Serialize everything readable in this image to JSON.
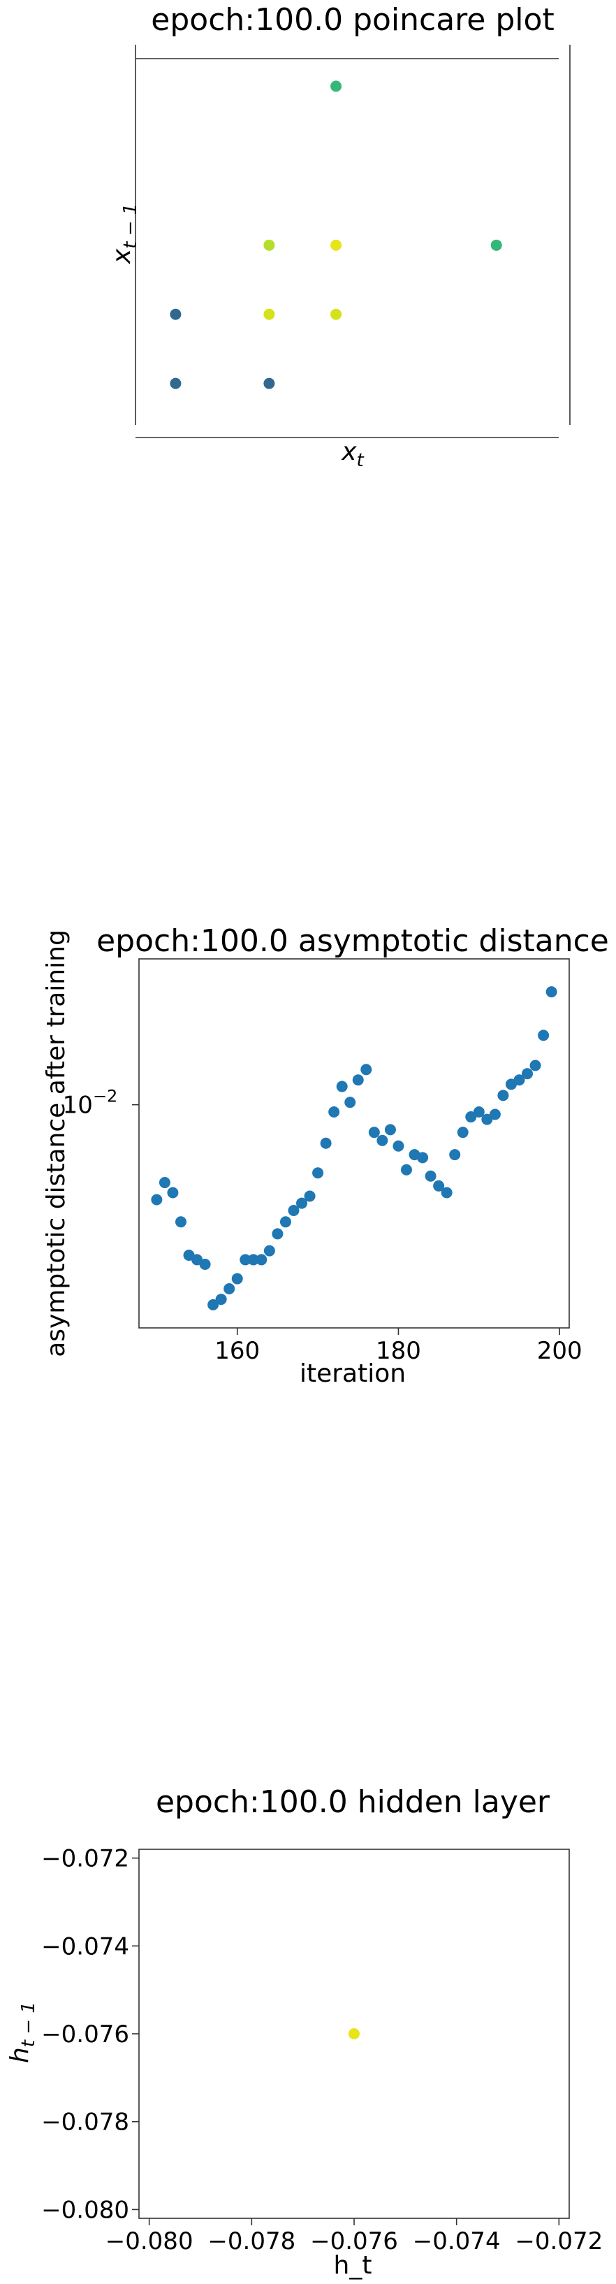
{
  "chart_data": [
    {
      "type": "scatter",
      "title": "epoch:100.0 poincare plot",
      "xlabel": "x_t",
      "ylabel": "x_{t-1}",
      "xlabel_parts": {
        "base": "x",
        "sub": "t"
      },
      "ylabel_parts": {
        "base": "x",
        "sub": "t − 1"
      },
      "x_ticks_visible": false,
      "y_ticks_visible": false,
      "xlim": [
        0,
        6.5
      ],
      "ylim": [
        0,
        5.5
      ],
      "points": [
        {
          "x": 0.6,
          "y": 0.6,
          "color": "#31688e"
        },
        {
          "x": 2.0,
          "y": 0.6,
          "color": "#31688e"
        },
        {
          "x": 0.6,
          "y": 1.6,
          "color": "#31688e"
        },
        {
          "x": 2.0,
          "y": 1.6,
          "color": "#d5e21a"
        },
        {
          "x": 3.0,
          "y": 1.6,
          "color": "#d5e21a"
        },
        {
          "x": 2.0,
          "y": 2.6,
          "color": "#b5de2b"
        },
        {
          "x": 3.0,
          "y": 2.6,
          "color": "#e7e419"
        },
        {
          "x": 5.4,
          "y": 2.6,
          "color": "#35b779"
        },
        {
          "x": 3.0,
          "y": 4.9,
          "color": "#35b779"
        }
      ],
      "reference_line": {
        "y": 5.3,
        "color": "#555555"
      }
    },
    {
      "type": "scatter",
      "title": "epoch:100.0 asymptotic distance",
      "xlabel": "iteration",
      "ylabel": "asymptotic distance after training",
      "yscale": "log",
      "xlim": [
        147.8,
        201.2
      ],
      "ylim": [
        0.0039,
        0.0185
      ],
      "x_ticks": [
        160,
        180,
        200
      ],
      "y_ticks": [
        {
          "value": 0.01,
          "label_base": "10",
          "label_exp": "−2"
        }
      ],
      "color": "#1f77b4",
      "x": [
        150,
        151,
        152,
        153,
        154,
        155,
        156,
        157,
        158,
        159,
        160,
        161,
        162,
        163,
        164,
        165,
        166,
        167,
        168,
        169,
        170,
        171,
        172,
        173,
        174,
        175,
        176,
        177,
        178,
        179,
        180,
        181,
        182,
        183,
        184,
        185,
        186,
        187,
        188,
        189,
        190,
        191,
        192,
        193,
        194,
        195,
        196,
        197,
        198,
        199
      ],
      "y": [
        0.0067,
        0.0072,
        0.0069,
        0.0061,
        0.0053,
        0.0052,
        0.0051,
        0.0043,
        0.0044,
        0.0046,
        0.0048,
        0.0052,
        0.0052,
        0.0052,
        0.0054,
        0.0058,
        0.0061,
        0.0064,
        0.0066,
        0.0068,
        0.0075,
        0.0085,
        0.0097,
        0.0108,
        0.0101,
        0.0111,
        0.0116,
        0.0089,
        0.0086,
        0.009,
        0.0084,
        0.0076,
        0.0081,
        0.008,
        0.0074,
        0.0071,
        0.0069,
        0.0081,
        0.0089,
        0.0095,
        0.0097,
        0.0094,
        0.0096,
        0.0104,
        0.0109,
        0.0111,
        0.0114,
        0.0118,
        0.0134,
        0.0161
      ]
    },
    {
      "type": "scatter",
      "title": "epoch:100.0 hidden layer",
      "xlabel": "h_t",
      "ylabel": "h_{t-1}",
      "ylabel_parts": {
        "base": "h",
        "sub": "t − 1"
      },
      "xlim": [
        -0.0802,
        -0.0718
      ],
      "ylim": [
        -0.0802,
        -0.0718
      ],
      "x_ticks": [
        -0.08,
        -0.078,
        -0.076,
        -0.074,
        -0.072
      ],
      "y_ticks": [
        -0.072,
        -0.074,
        -0.076,
        -0.078,
        -0.08
      ],
      "x_tick_labels": [
        "−0.080",
        "−0.078",
        "−0.076",
        "−0.074",
        "−0.072"
      ],
      "y_tick_labels": [
        "−0.072",
        "−0.074",
        "−0.076",
        "−0.078",
        "−0.080"
      ],
      "points": [
        {
          "x": -0.076,
          "y": -0.076,
          "color": "#e7e419"
        }
      ]
    }
  ]
}
